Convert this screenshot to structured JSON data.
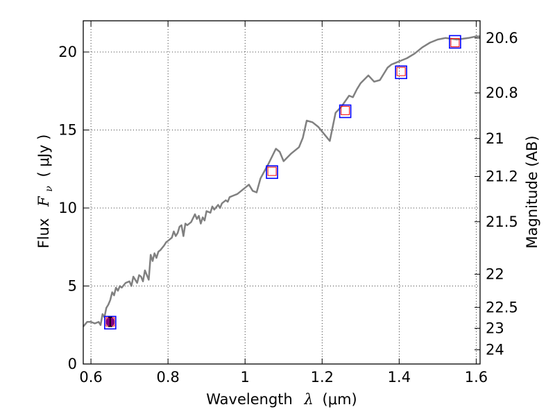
{
  "chart_data": {
    "type": "line",
    "xlabel_prefix": "Wavelength",
    "xlabel_symbol": "λ",
    "xlabel_unit": "(μm)",
    "ylabel_prefix": "Flux",
    "ylabel_symbol": "F",
    "ylabel_sub": "ν",
    "ylabel_unit": "( μJy )",
    "y2label": "Magnitude (AB)",
    "xlim": [
      0.58,
      1.61
    ],
    "ylim": [
      0,
      22
    ],
    "grid": true,
    "xticks": [
      0.6,
      0.8,
      1.0,
      1.2,
      1.4,
      1.6
    ],
    "xtick_labels": [
      "0.6",
      "0.8",
      "1",
      "1.2",
      "1.4",
      "1.6"
    ],
    "yticks": [
      0,
      5,
      10,
      15,
      20
    ],
    "ytick_labels": [
      "0",
      "5",
      "10",
      "15",
      "20"
    ],
    "mag_ticks": [
      20.6,
      20.8,
      21,
      21.2,
      21.5,
      22,
      22.5,
      23,
      24
    ],
    "mag_tick_labels": [
      "20.6",
      "20.8",
      "21",
      "21.2",
      "21.5",
      "22",
      "22.5",
      "23",
      "24"
    ],
    "series": [
      {
        "kind": "spectrum",
        "color": "#808080",
        "x": [
          0.58,
          0.59,
          0.6,
          0.61,
          0.62,
          0.625,
          0.63,
          0.635,
          0.64,
          0.645,
          0.65,
          0.655,
          0.66,
          0.665,
          0.67,
          0.675,
          0.68,
          0.69,
          0.7,
          0.705,
          0.71,
          0.72,
          0.725,
          0.73,
          0.735,
          0.74,
          0.75,
          0.755,
          0.76,
          0.765,
          0.77,
          0.775,
          0.78,
          0.79,
          0.795,
          0.8,
          0.81,
          0.815,
          0.82,
          0.825,
          0.83,
          0.835,
          0.84,
          0.845,
          0.85,
          0.86,
          0.87,
          0.875,
          0.88,
          0.885,
          0.89,
          0.895,
          0.9,
          0.91,
          0.915,
          0.92,
          0.93,
          0.935,
          0.94,
          0.95,
          0.955,
          0.96,
          0.97,
          0.98,
          0.99,
          1.0,
          1.01,
          1.02,
          1.03,
          1.04,
          1.06,
          1.08,
          1.09,
          1.1,
          1.12,
          1.14,
          1.15,
          1.16,
          1.175,
          1.19,
          1.2,
          1.22,
          1.235,
          1.25,
          1.27,
          1.28,
          1.29,
          1.3,
          1.32,
          1.335,
          1.35,
          1.37,
          1.38,
          1.39,
          1.4,
          1.42,
          1.44,
          1.46,
          1.48,
          1.5,
          1.52,
          1.55,
          1.58,
          1.6,
          1.61
        ],
        "y": [
          2.4,
          2.7,
          2.7,
          2.6,
          2.7,
          2.5,
          3.2,
          3.0,
          3.6,
          3.8,
          4.1,
          4.6,
          4.4,
          4.9,
          4.7,
          5.0,
          4.9,
          5.2,
          5.3,
          5.0,
          5.6,
          5.2,
          5.7,
          5.6,
          5.3,
          6.0,
          5.4,
          7.0,
          6.6,
          7.1,
          6.8,
          7.2,
          7.3,
          7.6,
          7.8,
          7.9,
          8.1,
          8.5,
          8.2,
          8.4,
          8.8,
          8.9,
          8.2,
          9.0,
          8.9,
          9.1,
          9.6,
          9.3,
          9.5,
          9.0,
          9.4,
          9.2,
          9.8,
          9.7,
          10.1,
          9.9,
          10.2,
          10.0,
          10.3,
          10.5,
          10.4,
          10.7,
          10.8,
          10.9,
          11.1,
          11.3,
          11.5,
          11.1,
          11.0,
          11.9,
          12.8,
          13.8,
          13.6,
          13.0,
          13.5,
          13.9,
          14.5,
          15.6,
          15.5,
          15.2,
          14.9,
          14.3,
          16.1,
          16.5,
          17.2,
          17.1,
          17.6,
          18.0,
          18.5,
          18.1,
          18.2,
          19.0,
          19.2,
          19.3,
          19.4,
          19.6,
          19.9,
          20.3,
          20.6,
          20.8,
          20.9,
          20.8,
          20.9,
          21.0,
          21.0
        ]
      },
      {
        "kind": "photometry-blue",
        "color": "#0000ff",
        "x": [
          0.65,
          1.07,
          1.26,
          1.405,
          1.545
        ],
        "y": [
          2.65,
          12.3,
          16.2,
          18.7,
          20.65
        ]
      },
      {
        "kind": "photometry-red",
        "color": "#ff0000",
        "x": [
          0.65,
          1.07,
          1.26,
          1.405,
          1.545
        ],
        "y": [
          2.7,
          12.35,
          16.25,
          18.75,
          20.6
        ]
      },
      {
        "kind": "measured-point",
        "color": "#800080",
        "x": [
          0.65
        ],
        "y": [
          2.7
        ],
        "yerr": [
          0.3
        ]
      }
    ]
  }
}
